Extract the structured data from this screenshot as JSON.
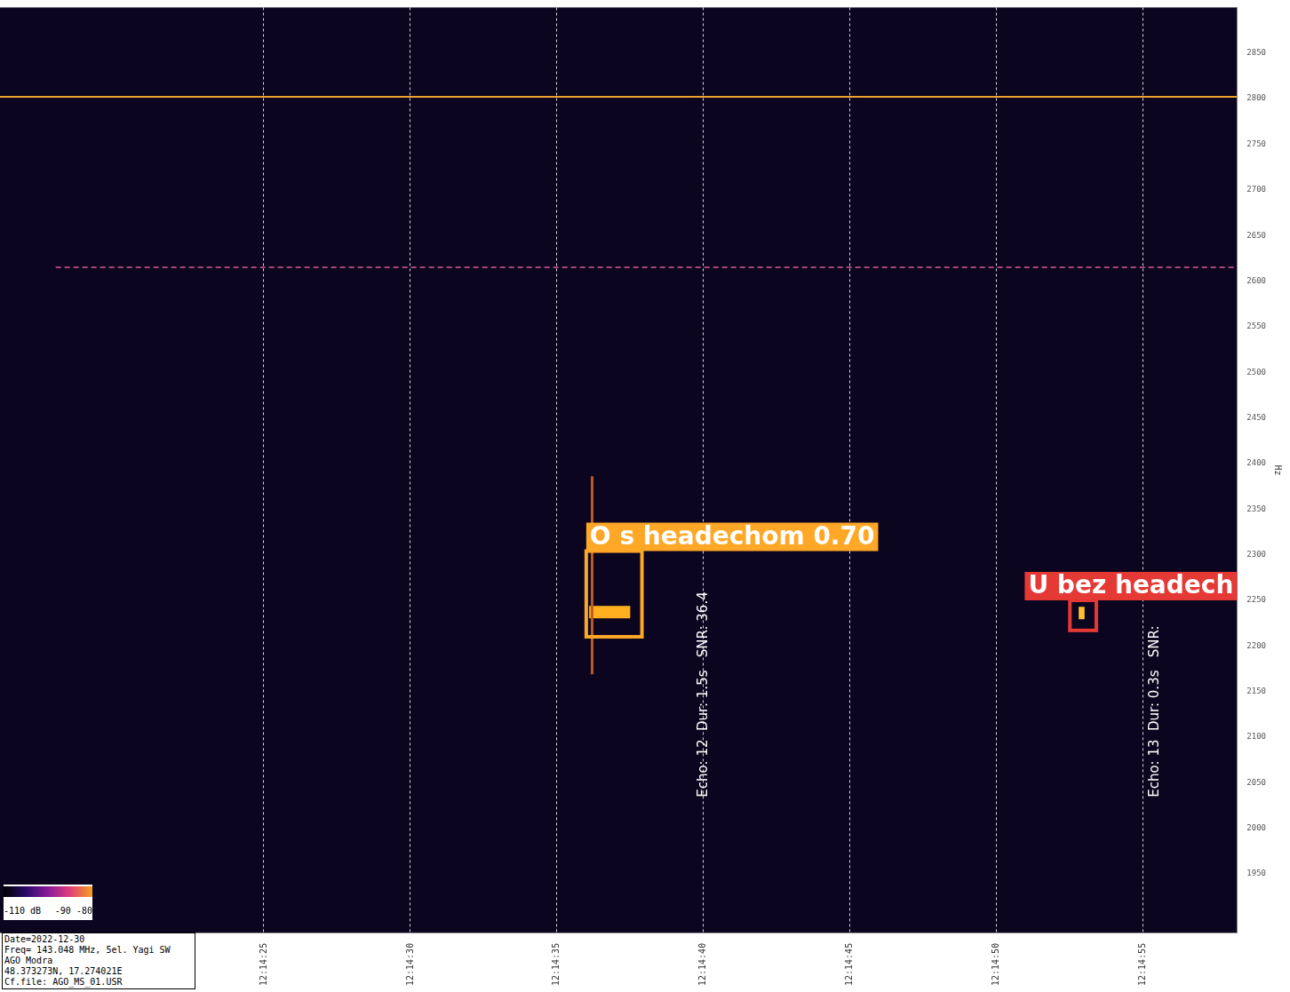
{
  "chart_data": {
    "type": "spectrogram",
    "y_label": "Hz",
    "xlim": [
      16,
      58.2
    ],
    "xticks": [
      {
        "value": 25,
        "label": "12:14:25"
      },
      {
        "value": 30,
        "label": "12:14:30"
      },
      {
        "value": 35,
        "label": "12:14:35"
      },
      {
        "value": 40,
        "label": "12:14:40"
      },
      {
        "value": 45,
        "label": "12:14:45"
      },
      {
        "value": 50,
        "label": "12:14:50"
      },
      {
        "value": 55,
        "label": "12:14:55"
      }
    ],
    "ylim": [
      1885,
      2900
    ],
    "yticks": [
      1950,
      2000,
      2050,
      2100,
      2150,
      2200,
      2250,
      2300,
      2350,
      2400,
      2450,
      2500,
      2550,
      2600,
      2650,
      2700,
      2750,
      2800,
      2850
    ],
    "grid": "x",
    "series": [
      {
        "x": [
          16,
          58.2
        ],
        "values": [
          2802,
          2802
        ],
        "color": "#f0a030",
        "line_style": "solid"
      },
      {
        "x": [
          17.9,
          58.2
        ],
        "values": [
          2615,
          2615
        ],
        "color": "#a04878",
        "line_style": "dashed"
      },
      {
        "x": [
          36.2,
          36.2
        ],
        "values": [
          2386,
          2169
        ],
        "color": "#c05a20",
        "line_style": "solid"
      },
      {
        "x": [
          36.1,
          37.5
        ],
        "values": [
          2237,
          2237
        ],
        "color": "#ffb020",
        "line_style": "solid"
      },
      {
        "x": [
          52.8,
          53.0
        ],
        "values": [
          2236,
          2236
        ],
        "color": "#ffc030",
        "line_style": "solid"
      }
    ],
    "detections": [
      {
        "label": "O s headechom 0.70",
        "color": "#ffa726",
        "x": [
          36.0,
          37.9
        ],
        "y": [
          2210,
          2304
        ]
      },
      {
        "label": "U bez headech",
        "color": "#e53935",
        "x": [
          52.5,
          53.4
        ],
        "y": [
          2217,
          2250
        ]
      }
    ],
    "echo_info": [
      {
        "text": "Echo: 12  Dur: 1.5s   SNR: 36.4",
        "x": 40,
        "y": 2034
      },
      {
        "text": "Echo: 13  Dur: 0.3s   SNR:",
        "x": 55.4,
        "y": 2034
      }
    ],
    "colorbar": {
      "range": [
        -110,
        -80
      ],
      "ticks": [
        {
          "value": -110,
          "label": "-110 dB"
        },
        -90,
        -80
      ]
    },
    "info": [
      "Date=2022-12-30",
      "Freq= 143.048 MHz, 5el. Yagi SW",
      "AGO Modra",
      "48.373273N, 17.274021E",
      "Cf.file: AGO_MS_01.USR"
    ]
  }
}
